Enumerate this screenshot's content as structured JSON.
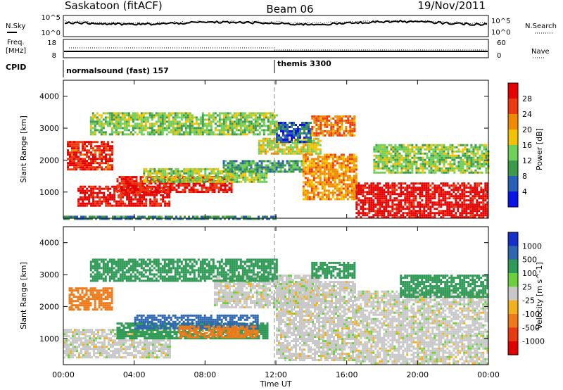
{
  "header": {
    "station": "Saskatoon (fitACF)",
    "beam": "Beam 06",
    "date": "19/Nov/2011"
  },
  "top_panels": {
    "nsky_label": "N.Sky",
    "nsearch_label": "N.Search",
    "freq_label_1": "Freq.",
    "freq_label_2": "[MHz]",
    "nave_label": "Nave",
    "cpid_label": "CPID",
    "noise_ticks_left": [
      "10^5",
      "10^0"
    ],
    "noise_ticks_right": [
      "10^5",
      "10^0"
    ],
    "freq_ticks": [
      "18",
      "8"
    ],
    "nave_ticks": [
      "60",
      "0"
    ],
    "cpid_segments": [
      {
        "label": "normalsound (fast) 157",
        "start_hour": 0
      },
      {
        "label": "themis 3300",
        "start_hour": 12
      }
    ]
  },
  "axes": {
    "ylabel": "Slant Range [km]",
    "xlabel": "Time UT",
    "yticks": [
      "1000",
      "2000",
      "3000",
      "4000"
    ],
    "xticks": [
      "00:00",
      "04:00",
      "08:00",
      "12:00",
      "16:00",
      "20:00",
      "00:00"
    ]
  },
  "colorbars": {
    "power": {
      "label": "Power [dB]",
      "ticks": [
        "4",
        "8",
        "12",
        "16",
        "20",
        "24",
        "28"
      ],
      "colors": [
        "#0a14e6",
        "#2a5fb8",
        "#3d9a4a",
        "#6fcf5a",
        "#f2c200",
        "#f08a00",
        "#ee3a10",
        "#e60000"
      ]
    },
    "velocity": {
      "label": "Velocity [m s^-1]",
      "ticks": [
        "1000",
        "500",
        "100",
        "25",
        "-25",
        "-100",
        "-500",
        "-1000"
      ],
      "colors": [
        "#1530c8",
        "#2e67b0",
        "#2e9a55",
        "#6ccf3c",
        "#c8c8c8",
        "#f2b21e",
        "#ee7a1a",
        "#e83a10",
        "#e00000"
      ]
    }
  },
  "chart_data": [
    {
      "type": "heatmap",
      "name": "Power",
      "xlabel": "Time UT",
      "ylabel": "Slant Range [km]",
      "xlim_hours": [
        0,
        24
      ],
      "ylim": [
        180,
        4500
      ],
      "colorbar_label": "Power [dB]",
      "value_range": [
        0,
        30
      ],
      "regions": [
        {
          "t0": 0.2,
          "t1": 2.8,
          "r0": 1700,
          "r1": 2600,
          "value": 26
        },
        {
          "t0": 0.8,
          "t1": 6.0,
          "r0": 600,
          "r1": 1200,
          "value": 28
        },
        {
          "t0": 3.0,
          "t1": 9.5,
          "r0": 1000,
          "r1": 1500,
          "value": 27
        },
        {
          "t0": 4.5,
          "t1": 11.5,
          "r0": 1350,
          "r1": 1750,
          "value": 14
        },
        {
          "t0": 9.0,
          "t1": 13.5,
          "r0": 1650,
          "r1": 2000,
          "value": 10
        },
        {
          "t0": 11.0,
          "t1": 14.5,
          "r0": 2200,
          "r1": 2700,
          "value": 16
        },
        {
          "t0": 12.0,
          "t1": 14.0,
          "r0": 2600,
          "r1": 3200,
          "value": 6
        },
        {
          "t0": 13.5,
          "t1": 16.5,
          "r0": 800,
          "r1": 2200,
          "value": 20
        },
        {
          "t0": 14.0,
          "t1": 16.5,
          "r0": 2800,
          "r1": 3400,
          "value": 22
        },
        {
          "t0": 16.5,
          "t1": 24.0,
          "r0": 200,
          "r1": 1300,
          "value": 29
        },
        {
          "t0": 17.5,
          "t1": 24.0,
          "r0": 1600,
          "r1": 2500,
          "value": 13
        },
        {
          "t0": 0.0,
          "t1": 12.0,
          "r0": 180,
          "r1": 260,
          "value": 8
        },
        {
          "t0": 1.5,
          "t1": 12.0,
          "r0": 2800,
          "r1": 3500,
          "value": 13
        }
      ]
    },
    {
      "type": "heatmap",
      "name": "Velocity",
      "xlabel": "Time UT",
      "ylabel": "Slant Range [km]",
      "xlim_hours": [
        0,
        24
      ],
      "ylim": [
        180,
        4500
      ],
      "colorbar_label": "Velocity [m s^-1]",
      "value_levels": [
        1000,
        500,
        100,
        25,
        -25,
        -100,
        -500,
        -1000
      ],
      "regions": [
        {
          "t0": 0.0,
          "t1": 6.0,
          "r0": 400,
          "r1": 1300,
          "value": 0
        },
        {
          "t0": 0.3,
          "t1": 2.8,
          "r0": 1900,
          "r1": 2600,
          "value": -300
        },
        {
          "t0": 3.0,
          "t1": 11.5,
          "r0": 1000,
          "r1": 1500,
          "value": 150
        },
        {
          "t0": 4.0,
          "t1": 11.0,
          "r0": 1350,
          "r1": 1750,
          "value": 600
        },
        {
          "t0": 6.5,
          "t1": 11.0,
          "r0": 1050,
          "r1": 1400,
          "value": -200
        },
        {
          "t0": 8.5,
          "t1": 14.5,
          "r0": 2000,
          "r1": 3000,
          "value": 0
        },
        {
          "t0": 12.0,
          "t1": 16.5,
          "r0": 300,
          "r1": 2800,
          "value": 0
        },
        {
          "t0": 14.0,
          "t1": 16.5,
          "r0": 2900,
          "r1": 3400,
          "value": 150
        },
        {
          "t0": 16.5,
          "t1": 24.0,
          "r0": 200,
          "r1": 2500,
          "value": 0
        },
        {
          "t0": 19.0,
          "t1": 24.0,
          "r0": 2300,
          "r1": 3000,
          "value": 150
        },
        {
          "t0": 1.5,
          "t1": 12.0,
          "r0": 2800,
          "r1": 3500,
          "value": 300
        }
      ]
    }
  ]
}
